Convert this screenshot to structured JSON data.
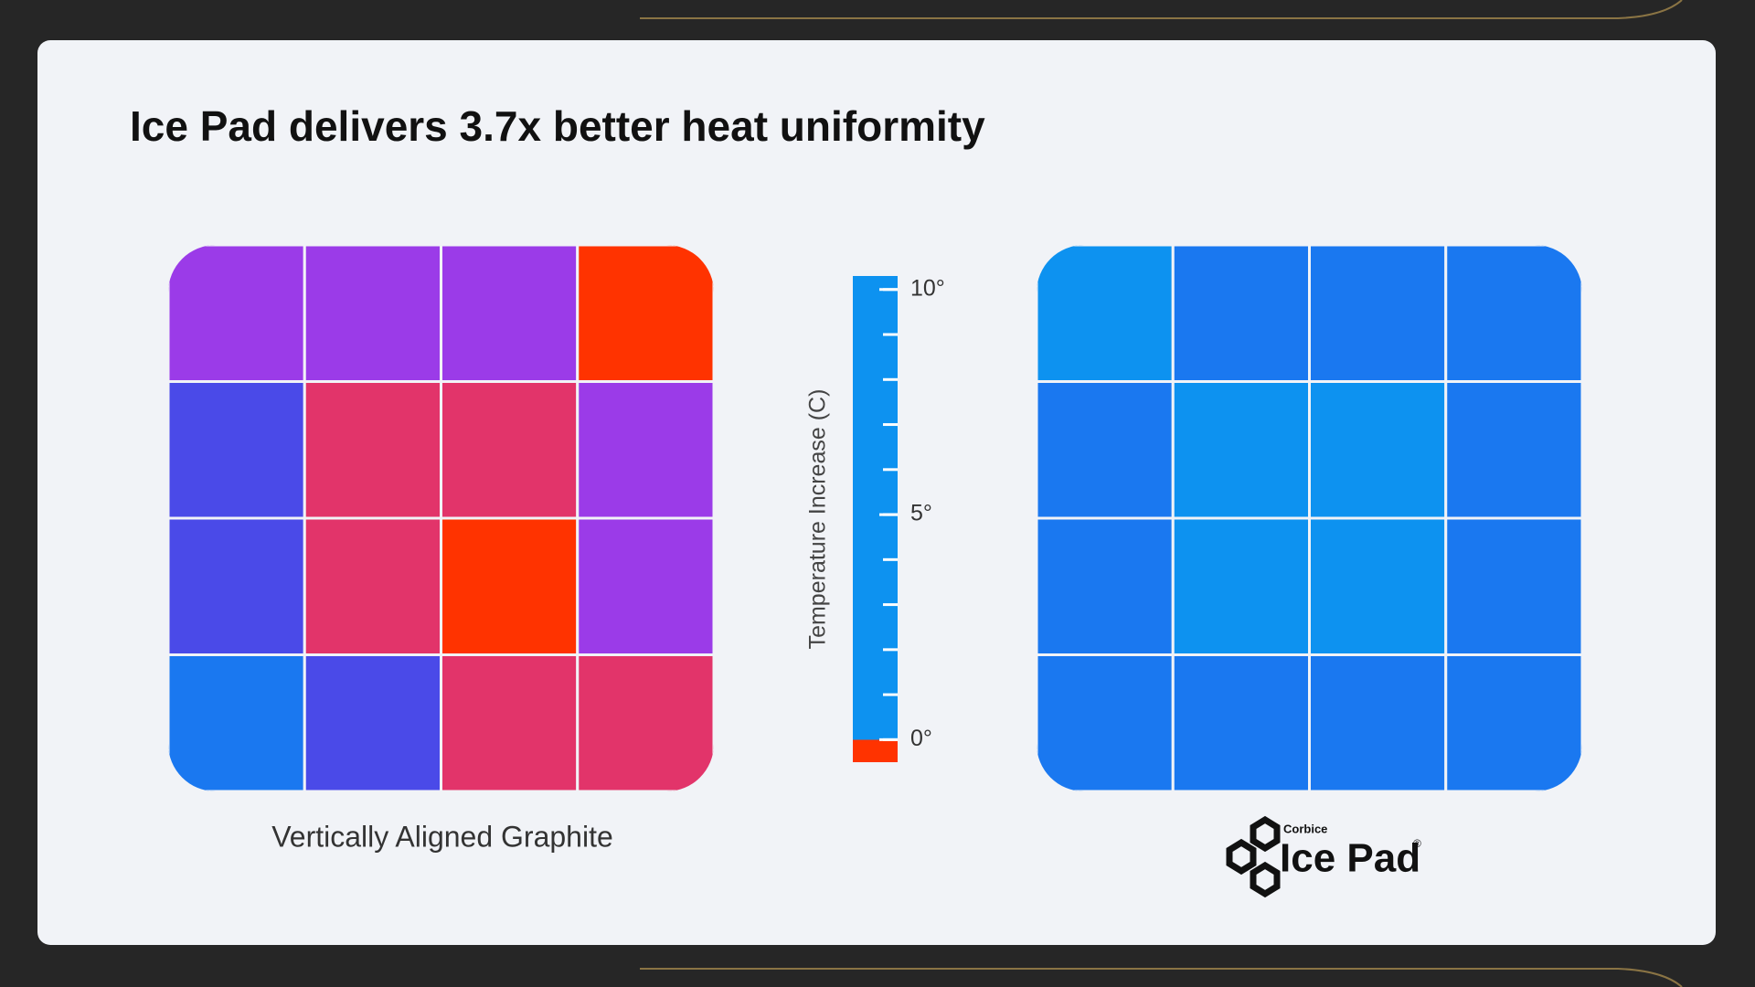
{
  "chart_data": {
    "type": "heatmap",
    "title": "Ice Pad delivers 3.7x better heat uniformity",
    "colorbar": {
      "label": "Temperature Increase (C)",
      "ylim": [
        -0.5,
        10.3
      ],
      "yticks": [
        {
          "value": 0,
          "label": "0°"
        },
        {
          "value": 5,
          "label": "5°"
        },
        {
          "value": 10,
          "label": "10°"
        }
      ],
      "minor_yticks": [
        0,
        1,
        2,
        3,
        4,
        5,
        6,
        7,
        8,
        9,
        10
      ],
      "colorscale": [
        [
          0,
          "#0d92f0"
        ],
        [
          1,
          "#1a78f0"
        ],
        [
          3,
          "#4a4ae8"
        ],
        [
          6,
          "#9b3be8"
        ],
        [
          8,
          "#e2346a"
        ],
        [
          10,
          "#ff3300"
        ]
      ]
    },
    "panels": [
      {
        "label": "Vertically Aligned Graphite",
        "values": [
          [
            6,
            6,
            6,
            10
          ],
          [
            3,
            8,
            8,
            6
          ],
          [
            3,
            8,
            10,
            6
          ],
          [
            1,
            3,
            8,
            8
          ]
        ]
      },
      {
        "logo": {
          "brand": "Corbice",
          "name": "Ice Pad",
          "mark": "®"
        },
        "values": [
          [
            0,
            1,
            1,
            1
          ],
          [
            1,
            0,
            0,
            1
          ],
          [
            1,
            0,
            0,
            1
          ],
          [
            1,
            1,
            1,
            1
          ]
        ]
      }
    ]
  }
}
